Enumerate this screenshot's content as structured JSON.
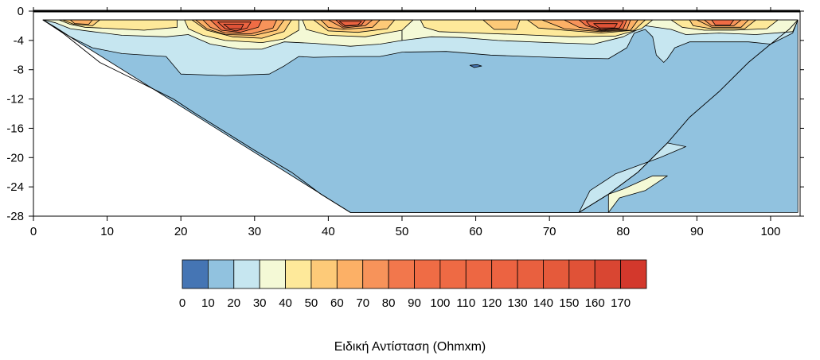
{
  "chart_data": {
    "type": "heatmap",
    "title": "",
    "xlabel": "",
    "ylabel": "",
    "xlim": [
      0,
      104
    ],
    "ylim": [
      -28,
      0
    ],
    "x_ticks": [
      0,
      10,
      20,
      30,
      40,
      50,
      60,
      70,
      80,
      90,
      100
    ],
    "y_ticks": [
      0,
      -4,
      -8,
      -12,
      -16,
      -20,
      -24,
      -28
    ],
    "grid": false,
    "colorbar": {
      "title": "Ειδική Αντίσταση (Ohmxm)",
      "placement": "bottom",
      "levels": [
        0,
        10,
        20,
        30,
        40,
        50,
        60,
        70,
        80,
        90,
        100,
        110,
        120,
        130,
        140,
        150,
        160,
        170,
        180
      ],
      "label_values": [
        0,
        10,
        20,
        30,
        40,
        50,
        60,
        70,
        80,
        90,
        100,
        110,
        120,
        130,
        140,
        150,
        160,
        170
      ],
      "colors": [
        "#4575b4",
        "#91c2df",
        "#c6e6f0",
        "#f4f9d6",
        "#fee99a",
        "#fdca78",
        "#fcb066",
        "#f7935a",
        "#f2774c",
        "#ef6c45",
        "#ee6a44",
        "#ed6743",
        "#ec6341",
        "#e9603f",
        "#e55a3b",
        "#e05237",
        "#d94632",
        "#d3382c"
      ]
    },
    "section_envelope": {
      "top_depth": -1.2,
      "left": [
        [
          1.3,
          -1.2
        ],
        [
          4,
          -3
        ],
        [
          6.5,
          -5
        ],
        [
          9,
          -7
        ],
        [
          13,
          -9
        ],
        [
          16,
          -10.5
        ],
        [
          19,
          -12
        ],
        [
          22,
          -14
        ],
        [
          26,
          -16.5
        ],
        [
          30,
          -19
        ],
        [
          35,
          -22
        ],
        [
          39,
          -25
        ],
        [
          43,
          -27.5
        ]
      ],
      "bottom_depth": -27.5,
      "bottom_range": [
        43,
        74
      ],
      "right": [
        [
          74,
          -27.5
        ],
        [
          78,
          -25
        ],
        [
          82,
          -22
        ],
        [
          86,
          -18
        ],
        [
          89,
          -14.5
        ],
        [
          93,
          -11
        ],
        [
          97,
          -7
        ],
        [
          100,
          -4.5
        ],
        [
          102.5,
          -2.5
        ],
        [
          103.7,
          -1.2
        ]
      ]
    },
    "regions": [
      {
        "value": 15,
        "polygon": [
          [
            1.3,
            -1.2
          ],
          [
            103.7,
            -1.2
          ],
          [
            103.7,
            -27.5
          ],
          [
            43,
            -27.5
          ]
        ]
      },
      {
        "value": 25,
        "polygon": [
          [
            1.3,
            -1.2
          ],
          [
            103.7,
            -1.2
          ],
          [
            103,
            -3
          ],
          [
            100,
            -4.5
          ],
          [
            97,
            -4.2
          ],
          [
            93,
            -4.2
          ],
          [
            89,
            -4.2
          ],
          [
            87,
            -5
          ],
          [
            86,
            -6.5
          ],
          [
            85.5,
            -7
          ],
          [
            84.5,
            -6
          ],
          [
            84,
            -3.5
          ],
          [
            83,
            -2.5
          ],
          [
            81.5,
            -3
          ],
          [
            80.5,
            -5
          ],
          [
            78,
            -6.5
          ],
          [
            73,
            -6.4
          ],
          [
            67,
            -6.2
          ],
          [
            62,
            -6
          ],
          [
            56,
            -5.5
          ],
          [
            50,
            -5.6
          ],
          [
            47,
            -6.2
          ],
          [
            43,
            -6.2
          ],
          [
            38,
            -6.3
          ],
          [
            36,
            -6.2
          ],
          [
            34,
            -7.5
          ],
          [
            32,
            -8.6
          ],
          [
            26,
            -8.8
          ],
          [
            20,
            -8.6
          ],
          [
            18,
            -6.2
          ],
          [
            12,
            -5.8
          ],
          [
            8,
            -5
          ],
          [
            5,
            -3.5
          ],
          [
            3,
            -2.2
          ]
        ]
      },
      {
        "value": 25,
        "polygon": [
          [
            74,
            -27.5
          ],
          [
            75.5,
            -24.5
          ],
          [
            79,
            -22.2
          ],
          [
            85,
            -20
          ],
          [
            88.5,
            -18.5
          ],
          [
            86,
            -18
          ],
          [
            82,
            -22
          ],
          [
            78,
            -25
          ]
        ]
      },
      {
        "value": 35,
        "polygon": [
          [
            1.3,
            -1.2
          ],
          [
            50,
            -1.2
          ],
          [
            50,
            -4
          ],
          [
            47,
            -4.5
          ],
          [
            43,
            -4.8
          ],
          [
            38,
            -4.4
          ],
          [
            34,
            -4.2
          ],
          [
            31,
            -5.2
          ],
          [
            28,
            -5.2
          ],
          [
            24,
            -4.5
          ],
          [
            21,
            -3.2
          ],
          [
            18,
            -3.5
          ],
          [
            12,
            -3.3
          ],
          [
            8,
            -2.8
          ],
          [
            5,
            -2.4
          ],
          [
            3,
            -1.6
          ]
        ]
      },
      {
        "value": 35,
        "polygon": [
          [
            50,
            -1.2
          ],
          [
            103.7,
            -1.2
          ],
          [
            103,
            -2.8
          ],
          [
            98,
            -3.2
          ],
          [
            93,
            -3
          ],
          [
            88.5,
            -3.2
          ],
          [
            86.5,
            -2.5
          ],
          [
            83,
            -2
          ],
          [
            80,
            -3.5
          ],
          [
            76,
            -4.5
          ],
          [
            70,
            -4.3
          ],
          [
            63,
            -4
          ],
          [
            58,
            -3.6
          ],
          [
            54,
            -3.5
          ],
          [
            50,
            -4
          ]
        ]
      },
      {
        "value": 35,
        "polygon": [
          [
            78,
            -27.5
          ],
          [
            79.5,
            -25.5
          ],
          [
            83,
            -24.5
          ],
          [
            86,
            -22.5
          ],
          [
            84,
            -22.5
          ],
          [
            80,
            -24.3
          ],
          [
            78,
            -25
          ]
        ]
      },
      {
        "value": 45,
        "polygon": [
          [
            3.5,
            -1.2
          ],
          [
            19.5,
            -1.2
          ],
          [
            19.5,
            -2.2
          ],
          [
            15,
            -2.6
          ],
          [
            11,
            -2.4
          ],
          [
            7,
            -2.2
          ],
          [
            5,
            -1.8
          ]
        ]
      },
      {
        "value": 45,
        "polygon": [
          [
            20.5,
            -1.2
          ],
          [
            36,
            -1.2
          ],
          [
            36,
            -2.6
          ],
          [
            34,
            -3.8
          ],
          [
            31,
            -4.3
          ],
          [
            26,
            -4
          ],
          [
            23,
            -3.3
          ],
          [
            21,
            -2.4
          ]
        ]
      },
      {
        "value": 45,
        "polygon": [
          [
            36.5,
            -1.2
          ],
          [
            51.5,
            -1.2
          ],
          [
            50,
            -2.6
          ],
          [
            45,
            -3.5
          ],
          [
            40,
            -3.3
          ],
          [
            37,
            -2.5
          ]
        ]
      },
      {
        "value": 45,
        "polygon": [
          [
            52.5,
            -1.2
          ],
          [
            84,
            -1.2
          ],
          [
            82.5,
            -2.4
          ],
          [
            79,
            -3.4
          ],
          [
            73,
            -3.5
          ],
          [
            66,
            -3.2
          ],
          [
            60,
            -3
          ],
          [
            55,
            -2.8
          ],
          [
            53,
            -2.2
          ]
        ]
      },
      {
        "value": 45,
        "polygon": [
          [
            86.5,
            -1.2
          ],
          [
            101,
            -1.2
          ],
          [
            99.5,
            -2.4
          ],
          [
            95,
            -2.6
          ],
          [
            91,
            -2.6
          ],
          [
            88,
            -2.2
          ]
        ]
      },
      {
        "value": 55,
        "polygon": [
          [
            21.5,
            -1.2
          ],
          [
            35,
            -1.2
          ],
          [
            34,
            -2.8
          ],
          [
            31,
            -3.7
          ],
          [
            27,
            -3.5
          ],
          [
            23.5,
            -2.6
          ]
        ]
      },
      {
        "value": 55,
        "polygon": [
          [
            38,
            -1.2
          ],
          [
            49,
            -1.2
          ],
          [
            48,
            -2.4
          ],
          [
            44,
            -2.9
          ],
          [
            40,
            -2.7
          ]
        ]
      },
      {
        "value": 55,
        "polygon": [
          [
            61,
            -1.2
          ],
          [
            66,
            -1.2
          ],
          [
            65.5,
            -2.5
          ],
          [
            62.5,
            -2.5
          ]
        ]
      },
      {
        "value": 55,
        "polygon": [
          [
            67,
            -1.2
          ],
          [
            83,
            -1.2
          ],
          [
            81.5,
            -2.6
          ],
          [
            77,
            -3
          ],
          [
            72,
            -2.6
          ],
          [
            68.5,
            -2.3
          ]
        ]
      },
      {
        "value": 55,
        "polygon": [
          [
            89,
            -1.2
          ],
          [
            98,
            -1.2
          ],
          [
            96.5,
            -2.4
          ],
          [
            92,
            -2.4
          ],
          [
            89.5,
            -2
          ]
        ]
      },
      {
        "value": 55,
        "polygon": [
          [
            4,
            -1.2
          ],
          [
            9,
            -1.2
          ],
          [
            8,
            -2
          ],
          [
            5.5,
            -1.8
          ]
        ]
      },
      {
        "value": 65,
        "polygon": [
          [
            22,
            -1.2
          ],
          [
            34,
            -1.2
          ],
          [
            33,
            -2.6
          ],
          [
            30,
            -3.3
          ],
          [
            26,
            -3.2
          ],
          [
            23.5,
            -2.4
          ]
        ]
      },
      {
        "value": 65,
        "polygon": [
          [
            39,
            -1.2
          ],
          [
            47,
            -1.2
          ],
          [
            46,
            -2.2
          ],
          [
            42,
            -2.5
          ],
          [
            40,
            -2.2
          ]
        ]
      },
      {
        "value": 65,
        "polygon": [
          [
            69,
            -1.2
          ],
          [
            82,
            -1.2
          ],
          [
            81,
            -2.6
          ],
          [
            77,
            -2.8
          ],
          [
            72,
            -2.4
          ]
        ]
      },
      {
        "value": 65,
        "polygon": [
          [
            90,
            -1.2
          ],
          [
            97,
            -1.2
          ],
          [
            96,
            -2.2
          ],
          [
            92,
            -2.2
          ]
        ]
      },
      {
        "value": 65,
        "polygon": [
          [
            5,
            -1.2
          ],
          [
            8,
            -1.2
          ],
          [
            7.5,
            -1.8
          ],
          [
            5.6,
            -1.7
          ]
        ]
      },
      {
        "value": 75,
        "polygon": [
          [
            23,
            -1.2
          ],
          [
            33,
            -1.2
          ],
          [
            32.5,
            -2.3
          ],
          [
            29.5,
            -3.1
          ],
          [
            26,
            -3
          ],
          [
            24,
            -2.2
          ]
        ]
      },
      {
        "value": 75,
        "polygon": [
          [
            72,
            -1.2
          ],
          [
            81,
            -1.2
          ],
          [
            80.5,
            -2.5
          ],
          [
            77,
            -2.7
          ],
          [
            74,
            -2.2
          ]
        ]
      },
      {
        "value": 75,
        "polygon": [
          [
            40,
            -1.2
          ],
          [
            46,
            -1.2
          ],
          [
            45,
            -2
          ],
          [
            42,
            -2.3
          ]
        ]
      },
      {
        "value": 75,
        "polygon": [
          [
            91,
            -1.2
          ],
          [
            96,
            -1.2
          ],
          [
            95,
            -2
          ],
          [
            92,
            -2
          ]
        ]
      },
      {
        "value": 95,
        "polygon": [
          [
            24,
            -1.2
          ],
          [
            31,
            -1.2
          ],
          [
            30.5,
            -2.2
          ],
          [
            28,
            -2.9
          ],
          [
            25.5,
            -2.6
          ]
        ]
      },
      {
        "value": 95,
        "polygon": [
          [
            74,
            -1.2
          ],
          [
            80.5,
            -1.2
          ],
          [
            80,
            -2.4
          ],
          [
            77,
            -2.6
          ],
          [
            75,
            -2
          ]
        ]
      },
      {
        "value": 95,
        "polygon": [
          [
            41,
            -1.2
          ],
          [
            45,
            -1.2
          ],
          [
            44.5,
            -1.9
          ],
          [
            42,
            -2.1
          ]
        ]
      },
      {
        "value": 95,
        "polygon": [
          [
            92,
            -1.2
          ],
          [
            95,
            -1.2
          ],
          [
            94.5,
            -1.9
          ],
          [
            92.5,
            -1.9
          ]
        ]
      },
      {
        "value": 125,
        "polygon": [
          [
            25,
            -1.5
          ],
          [
            29.5,
            -1.5
          ],
          [
            29,
            -2.3
          ],
          [
            27.5,
            -2.7
          ],
          [
            26,
            -2.4
          ]
        ]
      },
      {
        "value": 125,
        "polygon": [
          [
            75,
            -1.4
          ],
          [
            80,
            -1.4
          ],
          [
            79.5,
            -2.3
          ],
          [
            77,
            -2.5
          ],
          [
            75.5,
            -2
          ]
        ]
      },
      {
        "value": 125,
        "polygon": [
          [
            41.5,
            -1.4
          ],
          [
            44.5,
            -1.4
          ],
          [
            44,
            -1.9
          ],
          [
            42.3,
            -2
          ]
        ]
      },
      {
        "value": 155,
        "polygon": [
          [
            25.8,
            -1.8
          ],
          [
            28.5,
            -1.8
          ],
          [
            28.2,
            -2.4
          ],
          [
            26.6,
            -2.4
          ]
        ]
      },
      {
        "value": 155,
        "polygon": [
          [
            76,
            -1.7
          ],
          [
            79.2,
            -1.7
          ],
          [
            78.8,
            -2.3
          ],
          [
            76.8,
            -2.3
          ]
        ]
      },
      {
        "value": 5,
        "polygon": [
          [
            59.2,
            -7.4
          ],
          [
            60.2,
            -7.3
          ],
          [
            60.8,
            -7.5
          ],
          [
            59.8,
            -7.7
          ]
        ]
      }
    ]
  }
}
